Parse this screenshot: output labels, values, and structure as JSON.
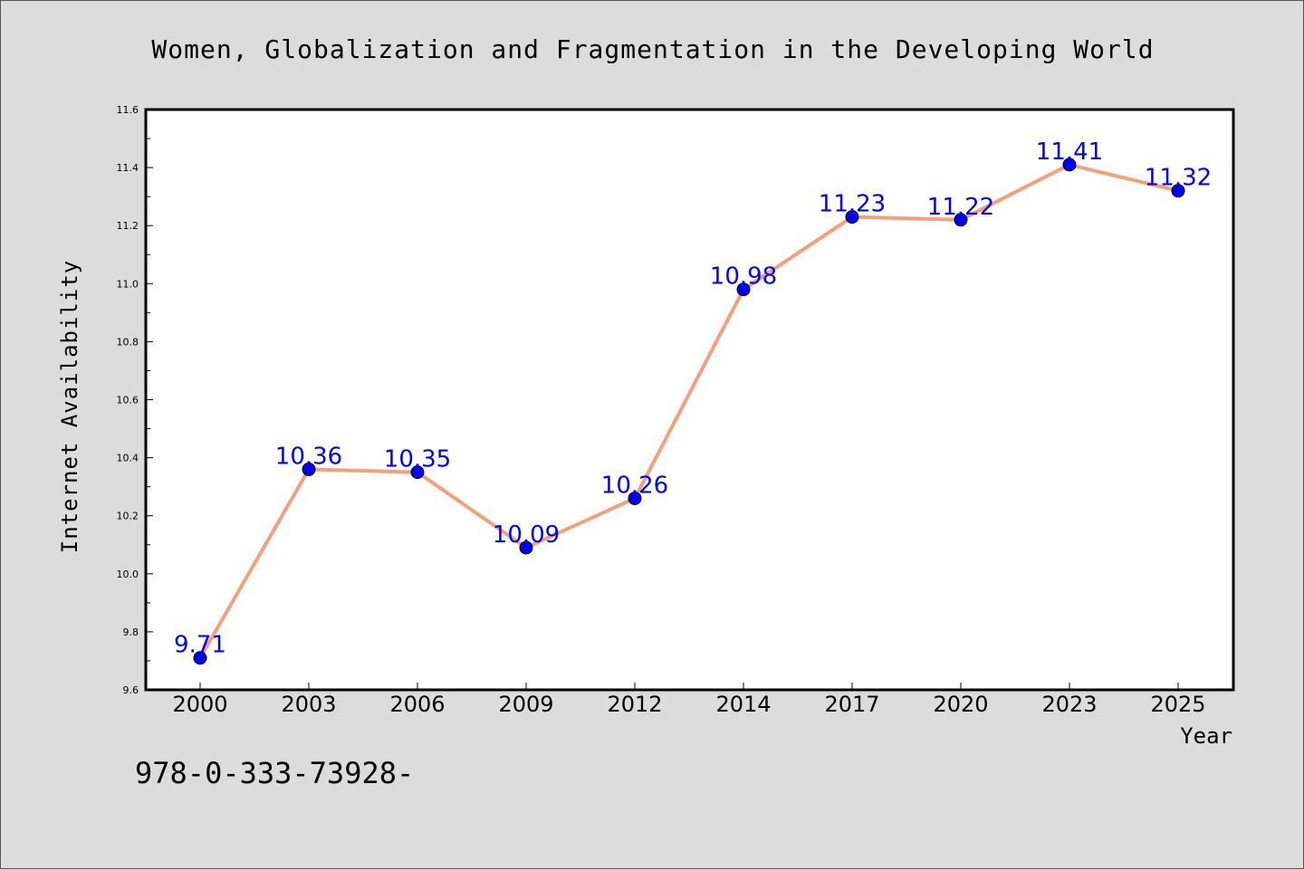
{
  "chart_data": {
    "type": "line",
    "title": "Women, Globalization and Fragmentation in the Developing World",
    "xlabel": "Year",
    "ylabel": "Internet Availability",
    "categories": [
      "2000",
      "2003",
      "2006",
      "2009",
      "2012",
      "2014",
      "2017",
      "2020",
      "2023",
      "2025"
    ],
    "series": [
      {
        "values": [
          9.71,
          10.36,
          10.35,
          10.09,
          10.26,
          10.98,
          11.23,
          11.22,
          11.41,
          11.32
        ],
        "labels": [
          "9.71",
          "10.36",
          "10.35",
          "10.09",
          "10.26",
          "10.98",
          "11.23",
          "11.22",
          "11.41",
          "11.32"
        ]
      }
    ],
    "ylim": [
      9.6,
      11.6
    ],
    "yticks": [
      "9.6",
      "9.8",
      "10.0",
      "10.2",
      "10.4",
      "10.6",
      "10.8",
      "11.0",
      "11.2",
      "11.4",
      "11.6"
    ],
    "grid": false,
    "legend": "none",
    "line_color": "#f4a07d",
    "marker_color": "#0000ee",
    "label_color": "#0000ff",
    "background_color": "#dcdcdc",
    "plot_background_color": "#ffffff"
  },
  "footer_text": "978-0-333-73928-"
}
